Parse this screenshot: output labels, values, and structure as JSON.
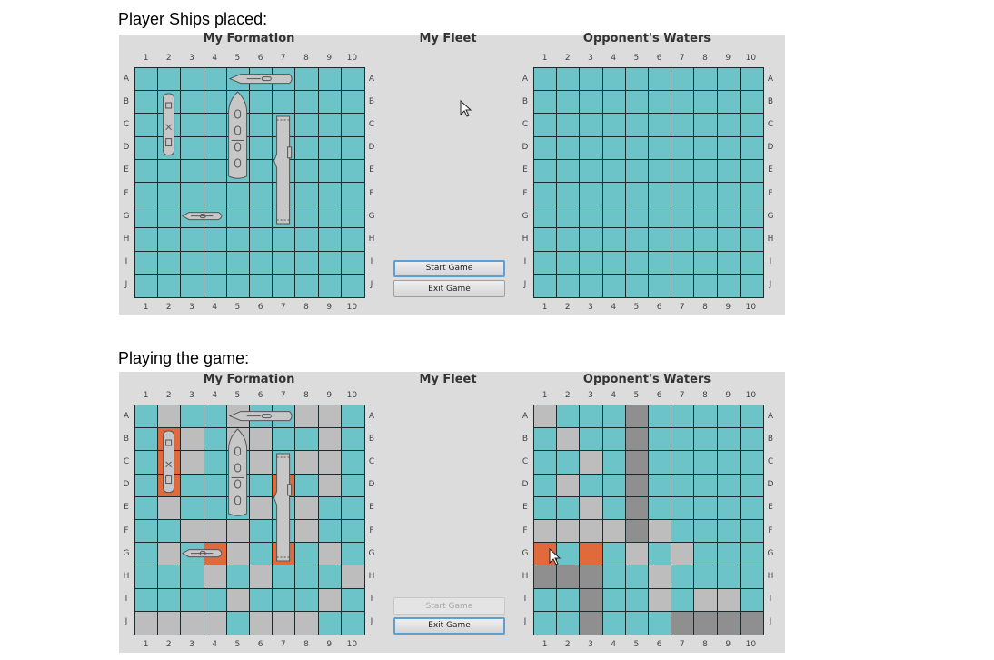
{
  "captions": {
    "top": "Player Ships placed:",
    "bottom": "Playing the game:"
  },
  "titles": {
    "formation": "My Formation",
    "fleet": "My Fleet",
    "opponent": "Opponent's Waters"
  },
  "columns": [
    "1",
    "2",
    "3",
    "4",
    "5",
    "6",
    "7",
    "8",
    "9",
    "10"
  ],
  "rows": [
    "A",
    "B",
    "C",
    "D",
    "E",
    "F",
    "G",
    "H",
    "I",
    "J"
  ],
  "buttons": {
    "start": "Start Game",
    "exit": "Exit Game"
  },
  "cell_legend": {
    "w": "water",
    "m": "miss",
    "h": "hit",
    "d": "sunk"
  },
  "colors": {
    "water": "#6cc3c8",
    "miss": "#bdbdbd",
    "hit": "#e06a3c",
    "sunk": "#8f8f8f",
    "panel": "#dcdcdc",
    "gridline": "#1c2b2b",
    "focus": "#5e9fd1"
  },
  "ships": [
    {
      "name": "horizontal ship",
      "cells": "A5-A7"
    },
    {
      "name": "vertical ship",
      "cells": "B2-D2"
    },
    {
      "name": "vertical ship",
      "cells": "B5-E5"
    },
    {
      "name": "carrier",
      "cells": "C7-G7"
    },
    {
      "name": "patrol boat",
      "cells": "G3-G4"
    }
  ],
  "panels": [
    {
      "start_enabled": true,
      "start_focused": true,
      "my_grid": [
        "wwwwwwwwww",
        "wwwwwwwwww",
        "wwwwwwwwww",
        "wwwwwwwwww",
        "wwwwwwwwww",
        "wwwwwwwwww",
        "wwwwwwwwww",
        "wwwwwwwwww",
        "wwwwwwwwww",
        "wwwwwwwwww"
      ],
      "opp_grid": [
        "wwwwwwwwww",
        "wwwwwwwwww",
        "wwwwwwwwww",
        "wwwwwwwwww",
        "wwwwwwwwww",
        "wwwwwwwwww",
        "wwwwwwwwww",
        "wwwwwwwwww",
        "wwwwwwwwww",
        "wwwwwwwwww"
      ]
    },
    {
      "start_enabled": false,
      "start_focused": false,
      "my_grid": [
        "wmwwmwwmmw",
        "whmwmmwwmw",
        "whmwwmwmmw",
        "whwwwwhwmw",
        "wmwwwmwmww",
        "wwmmmwwmww",
        "wmwhmwhwmw",
        "wwwmwmwwwm",
        "wwwwmwwwmw",
        "mmmmwmmmww"
      ],
      "opp_grid": [
        "mwwwdwwwww",
        "wmwwdwwwww",
        "wwmwdwwwww",
        "wmwwdwwwww",
        "wwmwdwwwww",
        "mmmmdmwwww",
        "hwhwmwmwww",
        "dddwwmwwww",
        "wwdwwmwmmw",
        "wwdwwwdddd"
      ]
    }
  ]
}
